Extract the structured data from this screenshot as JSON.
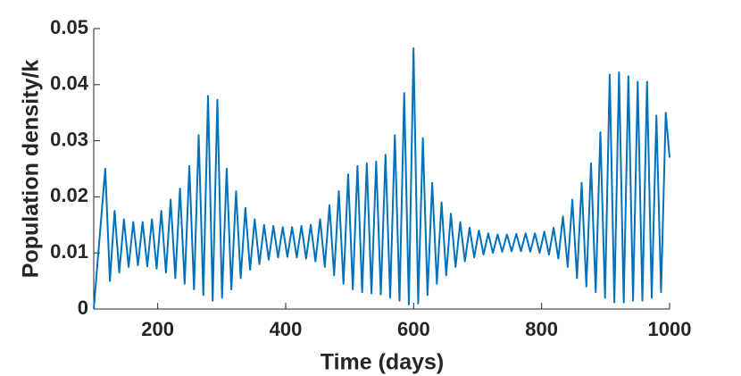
{
  "chart_data": {
    "type": "line",
    "x_label": "Time (days)",
    "y_label": "Population density/k",
    "color": "#0072bd",
    "x": [
      100,
      118,
      125.3,
      132.6,
      139.9,
      147.2,
      154.5,
      161.8,
      169.1,
      176.4,
      183.7,
      191,
      198.3,
      205.6,
      212.9,
      220.2,
      227.5,
      234.8,
      242.1,
      249.4,
      256.7,
      264,
      271.3,
      278.6,
      285.9,
      293.2,
      300.5,
      307.8,
      315.1,
      322.4,
      329.7,
      337,
      344.3,
      351.6,
      358.9,
      366.2,
      373.5,
      380.8,
      388.1,
      395.4,
      402.7,
      410,
      417.3,
      424.6,
      431.9,
      439.2,
      446.5,
      453.8,
      461.1,
      468.4,
      475.7,
      483,
      490.3,
      497.6,
      504.9,
      512.2,
      519.5,
      526.8,
      534.1,
      541.4,
      548.7,
      556,
      563.3,
      570.6,
      577.9,
      585.2,
      592.5,
      599.8,
      607.1,
      614.4,
      621.7,
      629,
      636.3,
      643.6,
      650.9,
      658.2,
      665.5,
      672.8,
      680.1,
      687.4,
      694.7,
      702,
      709.3,
      716.6,
      723.9,
      731.2,
      738.5,
      745.8,
      753.1,
      760.4,
      767.7,
      775,
      782.3,
      789.6,
      796.9,
      804.2,
      811.5,
      818.8,
      826.1,
      833.4,
      840.7,
      848,
      855.3,
      862.6,
      869.9,
      877.2,
      884.5,
      891.8,
      899.1,
      906.4,
      913.7,
      921,
      928.3,
      935.6,
      942.9,
      950.2,
      957.5,
      964.8,
      972.1,
      979.4,
      986.7,
      994,
      1000
    ],
    "values": [
      0,
      0.025,
      0.005,
      0.0175,
      0.0065,
      0.016,
      0.0075,
      0.0155,
      0.0078,
      0.0155,
      0.0076,
      0.016,
      0.0072,
      0.0175,
      0.0065,
      0.0195,
      0.0055,
      0.0215,
      0.0045,
      0.0255,
      0.0035,
      0.031,
      0.0025,
      0.038,
      0.0015,
      0.0373,
      0.002,
      0.025,
      0.0035,
      0.021,
      0.0055,
      0.018,
      0.007,
      0.016,
      0.008,
      0.015,
      0.0088,
      0.0148,
      0.0092,
      0.0146,
      0.0093,
      0.0146,
      0.0092,
      0.0148,
      0.009,
      0.015,
      0.0085,
      0.016,
      0.0075,
      0.0185,
      0.006,
      0.021,
      0.0045,
      0.024,
      0.0035,
      0.0255,
      0.003,
      0.026,
      0.0028,
      0.0263,
      0.0026,
      0.0275,
      0.002,
      0.031,
      0.0015,
      0.0385,
      0.0008,
      0.0465,
      0.001,
      0.0305,
      0.0025,
      0.0225,
      0.0045,
      0.019,
      0.006,
      0.017,
      0.0075,
      0.0155,
      0.0085,
      0.0145,
      0.0092,
      0.014,
      0.0097,
      0.0135,
      0.01,
      0.0133,
      0.0102,
      0.0133,
      0.0103,
      0.0134,
      0.0103,
      0.0135,
      0.0102,
      0.0135,
      0.01,
      0.0138,
      0.0097,
      0.0145,
      0.009,
      0.0165,
      0.0075,
      0.0195,
      0.0055,
      0.0225,
      0.004,
      0.026,
      0.003,
      0.0315,
      0.002,
      0.0418,
      0.0012,
      0.0422,
      0.0012,
      0.0415,
      0.0015,
      0.0405,
      0.0015,
      0.0405,
      0.002,
      0.0345,
      0.003,
      0.035,
      0.027
    ],
    "xlim": [
      100,
      1000
    ],
    "xticks": [
      200,
      400,
      600,
      800,
      1000
    ],
    "ylim": [
      0,
      0.05
    ],
    "yticks": [
      0,
      0.01,
      0.02,
      0.03,
      0.04,
      0.05
    ]
  }
}
